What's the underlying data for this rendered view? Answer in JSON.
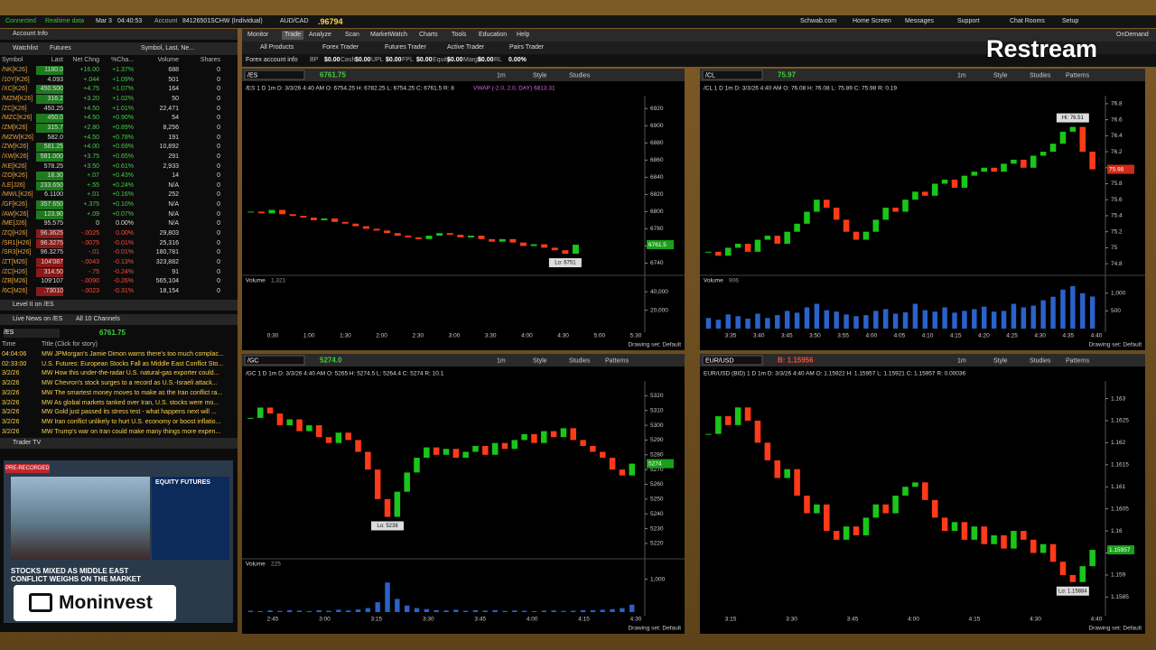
{
  "status_bar": {
    "items": [
      "Connected",
      "Realtime data",
      "Mar 3",
      "04:40:53",
      "Account",
      "84126501SCHW (Individual)",
      "AUD/CAD",
      ".96794"
    ],
    "links": [
      "Schwab.com",
      "Home Screen",
      "Messages",
      "Support",
      "Chat Rooms",
      "Setup"
    ]
  },
  "nav": {
    "tabs": [
      "Monitor",
      "Trade",
      "Analyze",
      "Scan",
      "MarketWatch",
      "Charts",
      "Tools",
      "Education",
      "Help"
    ],
    "subtabs": [
      "All Products",
      "Forex Trader",
      "Futures Trader",
      "Active Trader",
      "Pairs Trader"
    ],
    "on_demand": "OnDemand"
  },
  "account_bar": {
    "label": "Forex account info",
    "fields": [
      {
        "name": "BP",
        "value": "$0.00"
      },
      {
        "name": "Cash",
        "value": "$0.00"
      },
      {
        "name": "UPL",
        "value": "$0.00"
      },
      {
        "name": "FPL",
        "value": "$0.00"
      },
      {
        "name": "Equity",
        "value": "$0.00"
      },
      {
        "name": "Margin",
        "value": "$0.00"
      },
      {
        "name": "RL",
        "value": "0.00%"
      }
    ]
  },
  "left_panel": {
    "account_info": "Account Info",
    "watchlist": {
      "title": "Watchlist",
      "list": "Futures",
      "columns_picker": "Symbol, Last, Ne...",
      "columns": [
        "Symbol",
        "Last",
        "Net Chng",
        "%Cha...",
        "Volume",
        "Shares"
      ],
      "rows": [
        [
          "/NK[K26]",
          "1180.0",
          "+16.00",
          "+1.37%",
          "688",
          "0"
        ],
        [
          "/10Y[K26]",
          "4.093",
          "+.044",
          "+1.09%",
          "501",
          "0"
        ],
        [
          "/XC[K26]",
          "450.500",
          "+4.75",
          "+1.07%",
          "164",
          "0"
        ],
        [
          "/MZM[K26]",
          "316.2",
          "+3.20",
          "+1.02%",
          "50",
          "0"
        ],
        [
          "/ZC[K26]",
          "450.25",
          "+4.50",
          "+1.01%",
          "22,471",
          "0"
        ],
        [
          "/MZC[K26]",
          "450.0",
          "+4.50",
          "+0.90%",
          "54",
          "0"
        ],
        [
          "/ZM[K26]",
          "315.7",
          "+2.80",
          "+0.89%",
          "8,256",
          "0"
        ],
        [
          "/MZW[K26]",
          "582.0",
          "+4.50",
          "+0.78%",
          "191",
          "0"
        ],
        [
          "/ZW[K26]",
          "581.25",
          "+4.00",
          "+0.69%",
          "10,892",
          "0"
        ],
        [
          "/XW[K26]",
          "581.000",
          "+3.75",
          "+0.65%",
          "291",
          "0"
        ],
        [
          "/KE[K26]",
          "578.25",
          "+3.50",
          "+0.61%",
          "2,933",
          "0"
        ],
        [
          "/ZO[K26]",
          "18.30",
          "+.07",
          "+0.43%",
          "14",
          "0"
        ],
        [
          "/LE[J26]",
          "233.650",
          "+.55",
          "+0.24%",
          "N/A",
          "0"
        ],
        [
          "/MWL[K26]",
          "6.1100",
          "+.01",
          "+0.16%",
          "252",
          "0"
        ],
        [
          "/GF[K26]",
          "357.650",
          "+.375",
          "+0.10%",
          "N/A",
          "0"
        ],
        [
          "/AW[K26]",
          "123.90",
          "+.09",
          "+0.07%",
          "N/A",
          "0"
        ],
        [
          "/ME[J26]",
          "95.575",
          "0",
          "0.00%",
          "N/A",
          "0"
        ],
        [
          "/ZQ[H26]",
          "96.3625",
          "-.0025",
          "0.00%",
          "29,803",
          "0"
        ],
        [
          "/SR1[H26]",
          "96.3275",
          "-.0075",
          "-0.01%",
          "25,316",
          "0"
        ],
        [
          "/SR3[H26]",
          "96.3275",
          "-.01",
          "-0.01%",
          "180,781",
          "0"
        ],
        [
          "/ZT[M26]",
          "104'087",
          "-.0043",
          "-0.13%",
          "323,882",
          "0"
        ],
        [
          "/ZC[H26]",
          "314.50",
          "-.75",
          "-0.24%",
          "91",
          "0"
        ],
        [
          "/ZB[M26]",
          "109'107",
          "-.0090",
          "-0.26%",
          "565,104",
          "0"
        ],
        [
          "/6C[M26]",
          ".73010",
          "-.0023",
          "-0.31%",
          "18,154",
          "0"
        ]
      ]
    },
    "level2": "Level II on /ES",
    "news": {
      "title": "Live News on /ES",
      "channels": "All 10 Channels",
      "symbol": "/ES",
      "price": "6761.75",
      "columns": [
        "Time",
        "Title (Click for story)"
      ],
      "rows": [
        [
          "04:04:06",
          "MW JPMorgan's Jamie Dimon warns there's too much complac..."
        ],
        [
          "02:33:00",
          "U.S. Futures: European Stocks Fall as Middle East Conflict Sto..."
        ],
        [
          "3/2/26",
          "MW How this under-the-radar U.S. natural-gas exporter could..."
        ],
        [
          "3/2/26",
          "MW Chevron's stock surges to a record as U.S.-Israeli attack..."
        ],
        [
          "3/2/26",
          "MW The smartest money moves to make as the Iran conflict ra..."
        ],
        [
          "3/2/26",
          "MW As global markets tanked over Iran, U.S. stocks were mo..."
        ],
        [
          "3/2/26",
          "MW Gold just passed its stress test - what happens next will ..."
        ],
        [
          "3/2/26",
          "MW Iran conflict unlikely to hurt U.S. economy or boost inflatio..."
        ],
        [
          "3/2/26",
          "MW Trump's war on Iran could make many things more expen..."
        ]
      ]
    },
    "trader_tv": {
      "title": "Trader TV",
      "badge": "PRE-RECORDED",
      "panel_title": "EQUITY FUTURES",
      "headline": "STOCKS MIXED AS MIDDLE EAST CONFLICT WEIGHS ON THE MARKET"
    }
  },
  "overlays": {
    "top_right": "Restream",
    "bottom_left": "Moninvest"
  },
  "charts": [
    {
      "symbol": "/ES",
      "price": "6761.75",
      "header": "/ES 1 D 1m  D: 3/3/26 4:40 AM  O: 6754.25  H: 6782.25  L: 6754.25  C: 6761.5  R: 8",
      "study": "VWAP (-2.0, 2.0, DAY)  6813.31",
      "toolbar": [
        "1m",
        "Style",
        "Studies"
      ],
      "drawing_set": "Drawing set: Default",
      "volume_label": "Volume",
      "volume_value": "1,321",
      "note": "Lo: 6751",
      "price_tag": "6761.5",
      "ylim": [
        6730,
        6935
      ],
      "yticks": [
        6920,
        6900,
        6880,
        6860,
        6840,
        6820,
        6800,
        6780,
        6760,
        6740
      ],
      "xticks": [
        "0:30",
        "1:00",
        "1:30",
        "2:00",
        "2:30",
        "3:00",
        "3:30",
        "4:00",
        "4:30",
        "5:00",
        "5:30"
      ],
      "closes": [
        6800,
        6798,
        6802,
        6797,
        6795,
        6793,
        6790,
        6792,
        6788,
        6786,
        6783,
        6780,
        6778,
        6775,
        6772,
        6770,
        6768,
        6772,
        6775,
        6773,
        6770,
        6772,
        6768,
        6765,
        6768,
        6764,
        6760,
        6762,
        6758,
        6755,
        6751,
        6761.5
      ],
      "vol_ylim": [
        0,
        50000
      ],
      "vol_yticks": [
        {
          "value": 40000,
          "label": "40,000"
        },
        {
          "value": 20000,
          "label": "20,000"
        }
      ]
    },
    {
      "symbol": "/CL",
      "price": "75.97",
      "header": "/CL 1 D 1m  D: 3/3/26 4:40 AM  O: 76.08  H: 76.08  L: 75.89  C: 75.98  R: 0.19",
      "toolbar": [
        "1m",
        "Style",
        "Studies",
        "Patterns"
      ],
      "drawing_set": "Drawing set: Default",
      "volume_label": "Volume",
      "volume_value": "906",
      "note": "Hi: 76.51",
      "price_tag": "75.98",
      "ylim": [
        74.7,
        76.9
      ],
      "yticks": [
        76.8,
        76.6,
        76.4,
        76.2,
        76,
        75.8,
        75.6,
        75.4,
        75.2,
        75,
        74.8
      ],
      "xticks": [
        "3:35",
        "3:40",
        "3:45",
        "3:50",
        "3:55",
        "4:00",
        "4:05",
        "4:10",
        "4:15",
        "4:20",
        "4:25",
        "4:30",
        "4:35",
        "4:40"
      ],
      "closes": [
        74.95,
        74.9,
        75.0,
        75.05,
        74.95,
        75.1,
        75.15,
        75.05,
        75.2,
        75.3,
        75.45,
        75.6,
        75.5,
        75.35,
        75.2,
        75.1,
        75.2,
        75.35,
        75.5,
        75.45,
        75.6,
        75.7,
        75.65,
        75.8,
        75.85,
        75.75,
        75.9,
        75.95,
        76.0,
        75.95,
        76.05,
        76.1,
        76.0,
        76.15,
        76.2,
        76.3,
        76.45,
        76.51,
        76.2,
        75.98
      ],
      "volume": [
        300,
        250,
        400,
        350,
        280,
        420,
        300,
        380,
        500,
        450,
        600,
        700,
        520,
        480,
        400,
        350,
        380,
        500,
        550,
        420,
        460,
        700,
        520,
        480,
        600,
        450,
        500,
        550,
        620,
        480,
        500,
        700,
        600,
        650,
        800,
        900,
        1100,
        1200,
        1000,
        906
      ],
      "vol_ylim": [
        0,
        1300
      ],
      "vol_yticks": [
        {
          "value": 1000,
          "label": "1,000"
        },
        500
      ]
    },
    {
      "symbol": "/GC",
      "price": "5274.0",
      "header": "/GC 1 D 1m  D: 3/3/26 4:40 AM  O: 5265  H: 5274.5  L: 5264.4  C: 5274  R: 10.1",
      "toolbar": [
        "1m",
        "Style",
        "Studies",
        "Patterns"
      ],
      "drawing_set": "Drawing set: Default",
      "volume_label": "Volume",
      "volume_value": "225",
      "note": "Lo: 5238",
      "price_tag": "5274",
      "ylim": [
        5212,
        5330
      ],
      "yticks": [
        5320,
        5310,
        5300,
        5290,
        5280,
        5270,
        5260,
        5250,
        5240,
        5230,
        5220
      ],
      "xticks": [
        "2:45",
        "3:00",
        "3:15",
        "3:30",
        "3:45",
        "4:00",
        "4:15",
        "4:30"
      ],
      "closes": [
        5305,
        5312,
        5308,
        5300,
        5304,
        5296,
        5300,
        5292,
        5288,
        5295,
        5290,
        5282,
        5270,
        5250,
        5238,
        5255,
        5268,
        5278,
        5285,
        5280,
        5284,
        5278,
        5282,
        5286,
        5280,
        5288,
        5284,
        5290,
        5294,
        5288,
        5296,
        5292,
        5298,
        5290,
        5286,
        5282,
        5278,
        5270,
        5266,
        5274
      ],
      "volume": [
        40,
        30,
        50,
        35,
        60,
        45,
        30,
        55,
        40,
        70,
        50,
        80,
        120,
        300,
        900,
        400,
        200,
        120,
        90,
        60,
        50,
        70,
        40,
        55,
        45,
        60,
        35,
        50,
        40,
        30,
        45,
        50,
        35,
        40,
        60,
        55,
        70,
        90,
        120,
        225
      ],
      "vol_ylim": [
        0,
        1400
      ],
      "vol_yticks": [
        {
          "value": 1000,
          "label": "1,000"
        }
      ]
    },
    {
      "symbol": "EUR/USD",
      "price": "B: 1.15956",
      "header": "EUR/USD (BID) 1 D 1m  D: 3/3/26 4:40 AM  O: 1.15922  H: 1.15957  L: 1.15921  C: 1.15957  R: 0.00036",
      "toolbar": [
        "1m",
        "Style",
        "Studies",
        "Patterns"
      ],
      "drawing_set": "Drawing set: Default",
      "note": "Lo: 1.15884",
      "price_tag": "1.15957",
      "ylim": [
        1.1582,
        1.1634
      ],
      "yticks": [
        1.163,
        1.1625,
        1.162,
        1.1615,
        1.161,
        1.1605,
        1.16,
        1.1595,
        1.159,
        1.1585
      ],
      "xticks": [
        "3:15",
        "3:30",
        "3:45",
        "4:00",
        "4:15",
        "4:30",
        "4:40"
      ],
      "closes": [
        1.1622,
        1.1626,
        1.1624,
        1.1628,
        1.1625,
        1.162,
        1.1616,
        1.1612,
        1.1614,
        1.1608,
        1.1604,
        1.1606,
        1.16,
        1.1598,
        1.1601,
        1.1599,
        1.1603,
        1.1606,
        1.1604,
        1.1608,
        1.161,
        1.1611,
        1.1607,
        1.1603,
        1.16,
        1.1602,
        1.1598,
        1.1601,
        1.1597,
        1.1599,
        1.1596,
        1.16,
        1.1598,
        1.1595,
        1.1597,
        1.1593,
        1.159,
        1.15884,
        1.1592,
        1.15957
      ]
    }
  ]
}
